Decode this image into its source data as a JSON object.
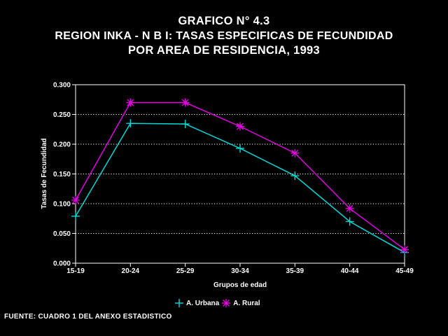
{
  "title": {
    "line1": "GRAFICO N° 4.3",
    "line2": "REGION INKA - N B I: TASAS ESPECIFICAS DE FECUNDIDAD",
    "line3": "POR AREA DE RESIDENCIA, 1993"
  },
  "source": "FUENTE: CUADRO 1  DEL ANEXO ESTADISTICO",
  "chart_data": {
    "type": "line",
    "title": "GRAFICO N° 4.3 REGION INKA - N B I: TASAS ESPECIFICAS DE FECUNDIDAD POR AREA DE RESIDENCIA, 1993",
    "xlabel": "Grupos de edad",
    "ylabel": "Tasas de Fecundidad",
    "categories": [
      "15-19",
      "20-24",
      "25-29",
      "30-34",
      "35-39",
      "40-44",
      "45-49"
    ],
    "ylim": [
      0,
      0.3
    ],
    "yticks": [
      "0.000",
      "0.050",
      "0.100",
      "0.150",
      "0.200",
      "0.250",
      "0.300"
    ],
    "grid": "horizontal-dotted",
    "legend": "bottom-center",
    "series": [
      {
        "name": "A. Urbana",
        "color": "#00d8d8",
        "marker": "plus",
        "values": [
          0.079,
          0.235,
          0.234,
          0.193,
          0.147,
          0.07,
          0.018
        ]
      },
      {
        "name": "A. Rural",
        "color": "#e000e0",
        "marker": "asterisk",
        "values": [
          0.106,
          0.27,
          0.27,
          0.23,
          0.185,
          0.092,
          0.023
        ]
      }
    ]
  }
}
